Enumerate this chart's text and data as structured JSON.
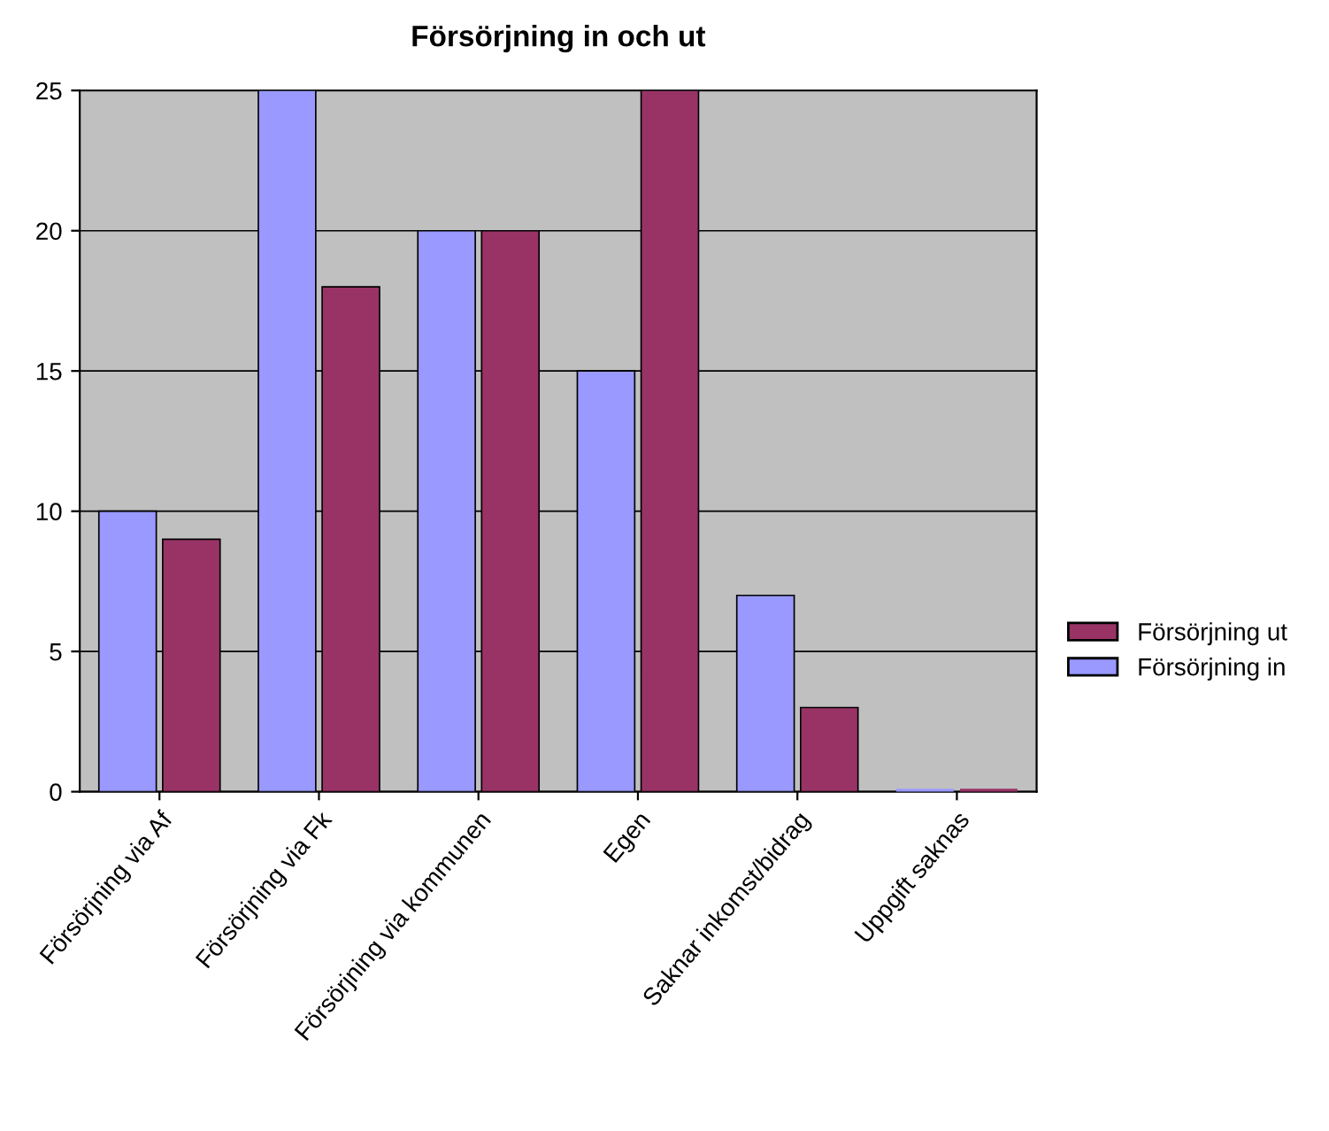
{
  "chart_data": {
    "type": "bar",
    "title": "Försörjning in och ut",
    "categories": [
      "Försörjning via Af",
      "Försörjning via Fk",
      "Försörjning via kommunen",
      "Egen",
      "Saknar inkomst/bidrag",
      "Uppgift saknas"
    ],
    "series": [
      {
        "name": "Försörjning in",
        "color": "#9999ff",
        "values": [
          10,
          25,
          20,
          15,
          7,
          0
        ]
      },
      {
        "name": "Försörjning ut",
        "color": "#993366",
        "values": [
          9,
          18,
          20,
          25,
          3,
          0
        ]
      }
    ],
    "ylim": [
      0,
      25
    ],
    "yticks": [
      0,
      5,
      10,
      15,
      20,
      25
    ],
    "grid": "y",
    "legend": "right"
  }
}
